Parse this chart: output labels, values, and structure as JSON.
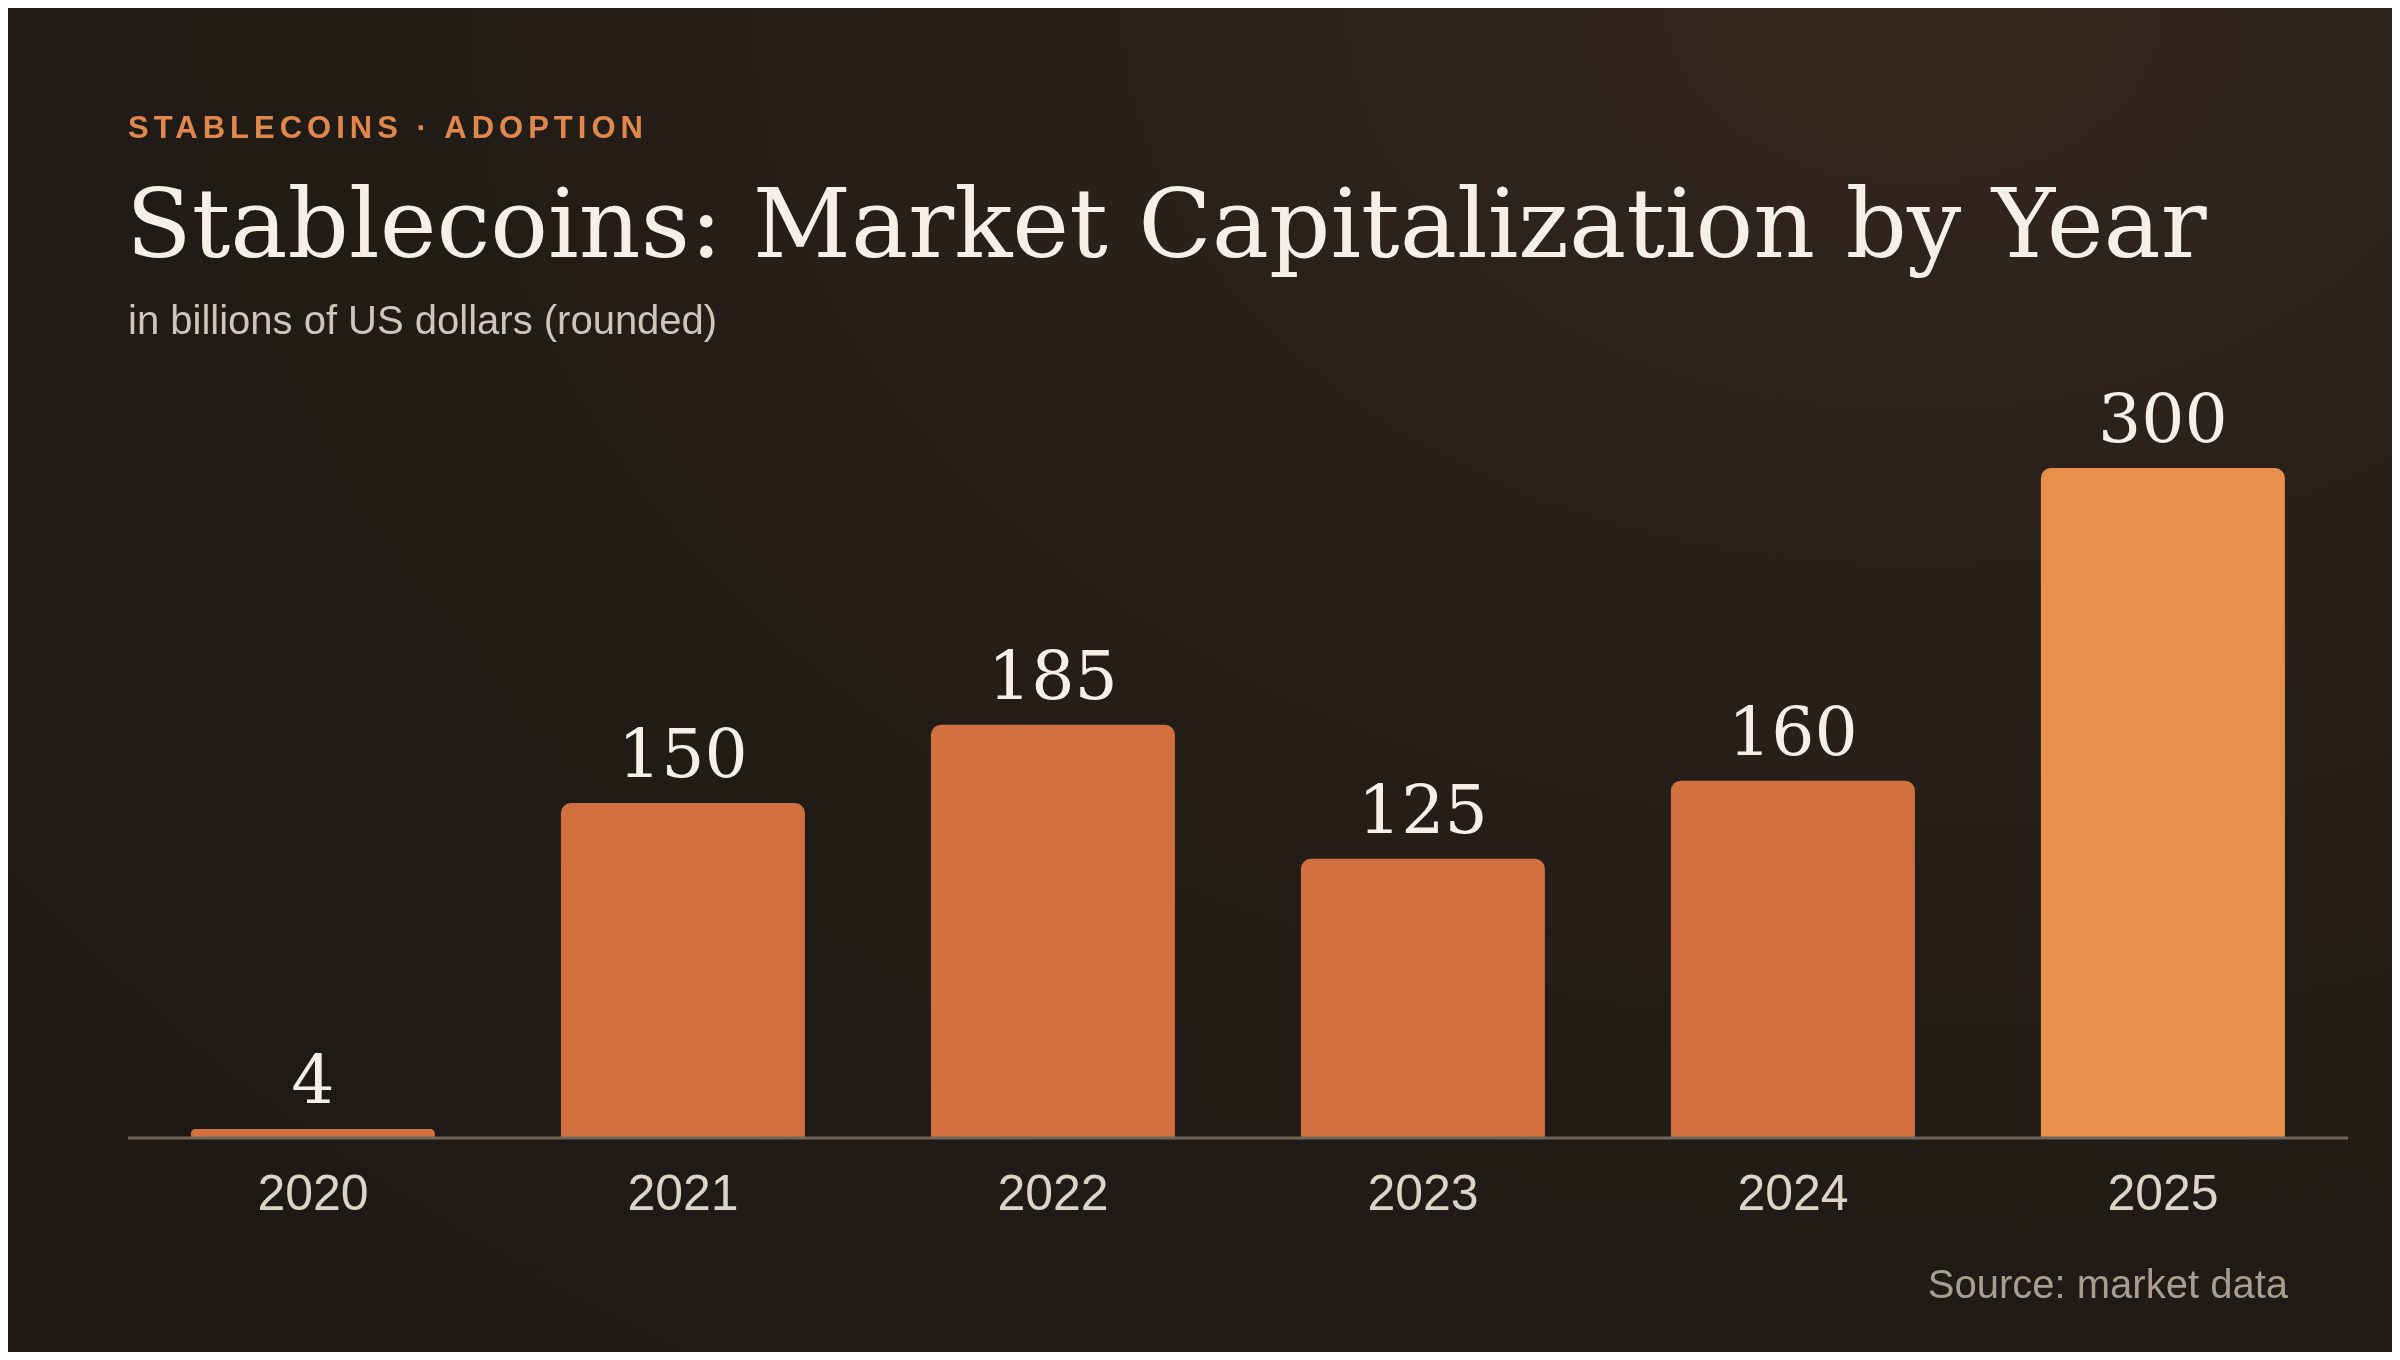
{
  "chart_data": {
    "type": "bar",
    "title": "Stablecoins: Market Capitalization by Year",
    "subtitle": "in billions of US dollars (rounded)",
    "annotations": [
      "STABLECOINS · ADOPTION",
      "Source: market data"
    ],
    "categories": [
      "2020",
      "2021",
      "2022",
      "2023",
      "2024",
      "2025"
    ],
    "values": [
      4,
      150,
      185,
      125,
      160,
      300
    ],
    "colors": [
      "#d2703f",
      "#d2703f",
      "#d2703f",
      "#d2703f",
      "#d2703f",
      "#e88f4e"
    ],
    "data_labels": true
  }
}
